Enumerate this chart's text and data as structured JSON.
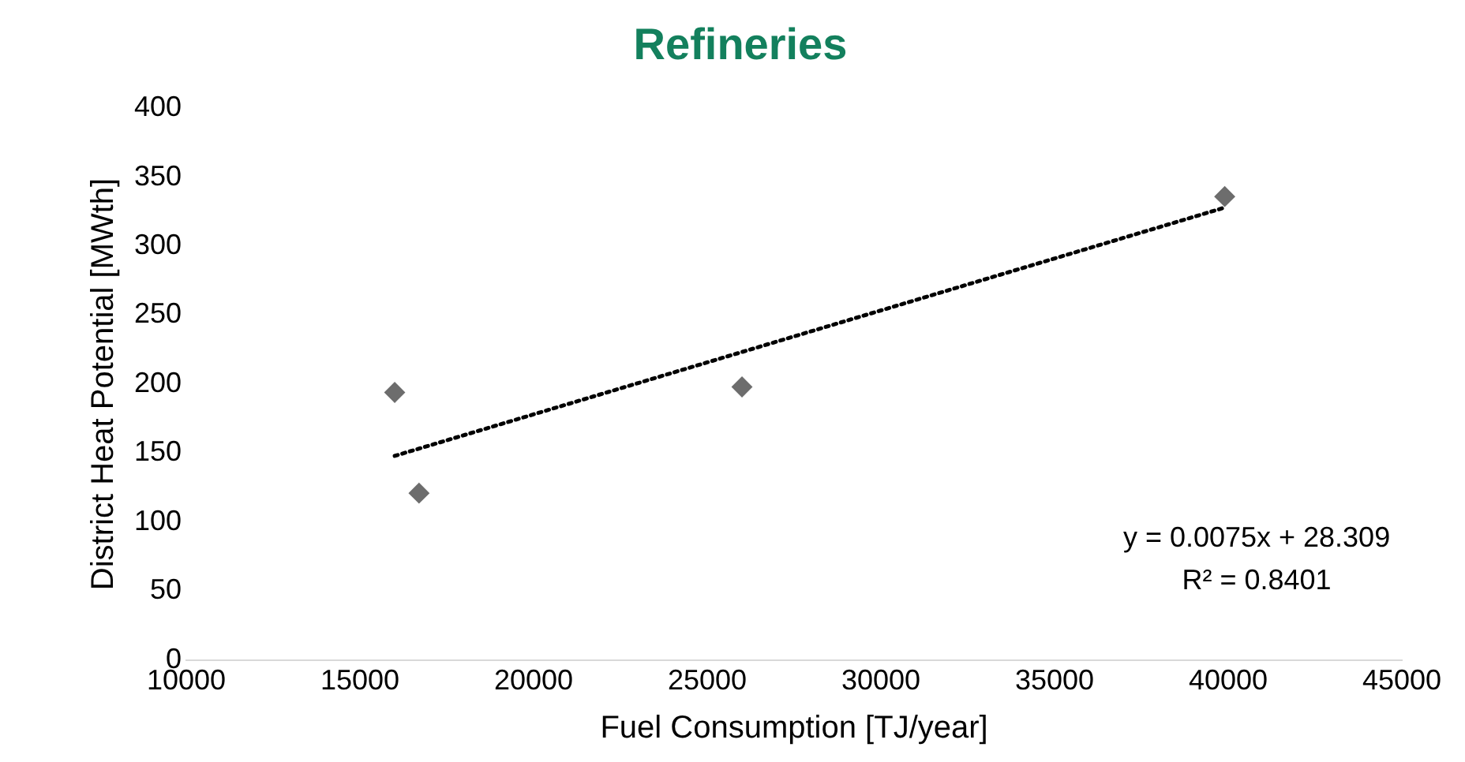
{
  "chart_data": {
    "type": "scatter",
    "title": "Refineries",
    "xlabel": "Fuel Consumption [TJ/year]",
    "ylabel": "District Heat Potential [MWth]",
    "x": [
      16000,
      16700,
      26000,
      39900
    ],
    "series": [
      {
        "type": "scatter",
        "color": "#6d6d6d",
        "values": [
          194,
          121,
          198,
          336
        ],
        "marker": "diamond"
      },
      {
        "type": "line",
        "color": "#000000",
        "x": [
          16000,
          39900
        ],
        "values": [
          148,
          328
        ],
        "line_style": "dotted",
        "marker": "none"
      }
    ],
    "xlim": [
      10000,
      45000
    ],
    "xticks": [
      10000,
      15000,
      20000,
      25000,
      30000,
      35000,
      40000,
      45000
    ],
    "ylim": [
      0,
      400
    ],
    "yticks": [
      0,
      50,
      100,
      150,
      200,
      250,
      300,
      350,
      400
    ],
    "annotations": [
      "y = 0.0075x + 28.309",
      "R² = 0.8401"
    ],
    "grid": false,
    "legend": false
  }
}
